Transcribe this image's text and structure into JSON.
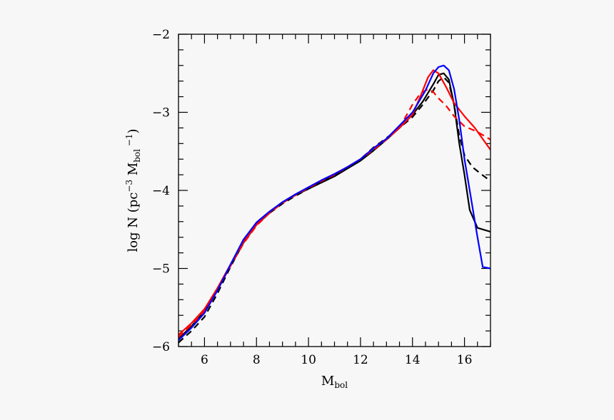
{
  "chart_data": {
    "type": "line",
    "title": "",
    "xlabel": {
      "main": "M",
      "sub": "bol"
    },
    "ylabel": {
      "prefix": "log N  (pc",
      "exp1": "−3",
      "mid": " M",
      "sub": "bol",
      "exp2": " −1",
      "suffix": ")"
    },
    "xlim": [
      5,
      17
    ],
    "ylim": [
      -6,
      -2
    ],
    "x_ticks": [
      {
        "value": 6,
        "label": "6"
      },
      {
        "value": 8,
        "label": "8"
      },
      {
        "value": 10,
        "label": "10"
      },
      {
        "value": 12,
        "label": "12"
      },
      {
        "value": 14,
        "label": "14"
      },
      {
        "value": 16,
        "label": "16"
      }
    ],
    "y_ticks": [
      {
        "value": -6,
        "label": "−6"
      },
      {
        "value": -5,
        "label": "−5"
      },
      {
        "value": -4,
        "label": "−4"
      },
      {
        "value": -3,
        "label": "−3"
      },
      {
        "value": -2,
        "label": "−2"
      }
    ],
    "x_minor_step": 0.5,
    "y_minor_step": 0.2,
    "grid": false,
    "series": [
      {
        "color": "#000000",
        "dash": "solid",
        "x": [
          5.0,
          5.5,
          6.0,
          6.5,
          7.0,
          7.5,
          8.0,
          8.5,
          9.0,
          9.5,
          10.0,
          10.5,
          11.0,
          11.5,
          12.0,
          12.5,
          13.0,
          13.5,
          14.0,
          14.4,
          14.8,
          15.0,
          15.2,
          15.4,
          15.6,
          15.8,
          16.0,
          16.2,
          16.5,
          17.0
        ],
        "y": [
          -5.9,
          -5.74,
          -5.55,
          -5.28,
          -4.96,
          -4.65,
          -4.42,
          -4.28,
          -4.16,
          -4.06,
          -3.98,
          -3.9,
          -3.82,
          -3.72,
          -3.62,
          -3.49,
          -3.35,
          -3.2,
          -3.03,
          -2.86,
          -2.64,
          -2.52,
          -2.5,
          -2.58,
          -2.9,
          -3.4,
          -3.8,
          -4.25,
          -4.48,
          -4.53
        ]
      },
      {
        "color": "#000000",
        "dash": "dashed",
        "x": [
          5.0,
          5.5,
          6.0,
          6.5,
          7.0,
          7.5,
          8.0,
          8.5,
          9.0,
          9.5,
          10.0,
          10.5,
          11.0,
          11.5,
          12.0,
          12.5,
          13.0,
          13.5,
          14.0,
          14.4,
          14.8,
          15.0,
          15.2,
          15.4,
          15.6,
          15.8,
          16.0,
          16.3,
          16.6,
          17.0
        ],
        "y": [
          -5.95,
          -5.8,
          -5.62,
          -5.32,
          -4.98,
          -4.67,
          -4.44,
          -4.29,
          -4.17,
          -4.07,
          -3.98,
          -3.89,
          -3.8,
          -3.7,
          -3.6,
          -3.45,
          -3.33,
          -3.2,
          -3.06,
          -2.9,
          -2.72,
          -2.6,
          -2.55,
          -2.62,
          -2.9,
          -3.3,
          -3.55,
          -3.7,
          -3.78,
          -3.88
        ]
      },
      {
        "color": "#ff0000",
        "dash": "solid",
        "x": [
          5.0,
          5.5,
          6.0,
          6.5,
          7.0,
          7.5,
          8.0,
          8.5,
          9.0,
          9.5,
          10.0,
          10.5,
          11.0,
          11.5,
          12.0,
          12.5,
          13.0,
          13.5,
          14.0,
          14.3,
          14.6,
          14.8,
          15.0,
          15.3,
          15.6,
          16.0,
          16.4,
          17.0
        ],
        "y": [
          -5.85,
          -5.7,
          -5.52,
          -5.25,
          -4.95,
          -4.66,
          -4.44,
          -4.28,
          -4.15,
          -4.05,
          -3.96,
          -3.87,
          -3.79,
          -3.7,
          -3.6,
          -3.46,
          -3.34,
          -3.2,
          -3.03,
          -2.8,
          -2.55,
          -2.46,
          -2.5,
          -2.68,
          -2.88,
          -3.05,
          -3.2,
          -3.48
        ]
      },
      {
        "color": "#ff0000",
        "dash": "dashed",
        "x": [
          5.0,
          5.5,
          6.0,
          6.5,
          7.0,
          7.5,
          8.0,
          8.5,
          9.0,
          9.5,
          10.0,
          10.5,
          11.0,
          11.5,
          12.0,
          12.5,
          13.0,
          13.5,
          14.0,
          14.3,
          14.6,
          14.8,
          15.0,
          15.3,
          15.6,
          16.0,
          16.5,
          17.0
        ],
        "y": [
          -5.88,
          -5.72,
          -5.55,
          -5.27,
          -4.97,
          -4.68,
          -4.45,
          -4.29,
          -4.16,
          -4.06,
          -3.97,
          -3.88,
          -3.8,
          -3.7,
          -3.6,
          -3.48,
          -3.35,
          -3.2,
          -2.9,
          -2.76,
          -2.7,
          -2.74,
          -2.82,
          -2.92,
          -3.05,
          -3.18,
          -3.25,
          -3.35
        ]
      },
      {
        "color": "#0000ff",
        "dash": "solid",
        "x": [
          5.0,
          5.5,
          6.0,
          6.5,
          7.0,
          7.5,
          8.0,
          8.5,
          9.0,
          9.5,
          10.0,
          10.5,
          11.0,
          11.5,
          12.0,
          12.5,
          13.0,
          13.5,
          14.0,
          14.5,
          14.8,
          15.0,
          15.2,
          15.4,
          15.6,
          15.8,
          16.0,
          16.2,
          16.5,
          16.7,
          17.0
        ],
        "y": [
          -5.92,
          -5.76,
          -5.57,
          -5.28,
          -4.95,
          -4.63,
          -4.41,
          -4.27,
          -4.15,
          -4.05,
          -3.96,
          -3.87,
          -3.79,
          -3.7,
          -3.6,
          -3.46,
          -3.34,
          -3.17,
          -3.0,
          -2.72,
          -2.5,
          -2.42,
          -2.4,
          -2.46,
          -2.7,
          -3.1,
          -3.6,
          -4.0,
          -4.6,
          -4.98,
          -5.0
        ]
      }
    ]
  }
}
